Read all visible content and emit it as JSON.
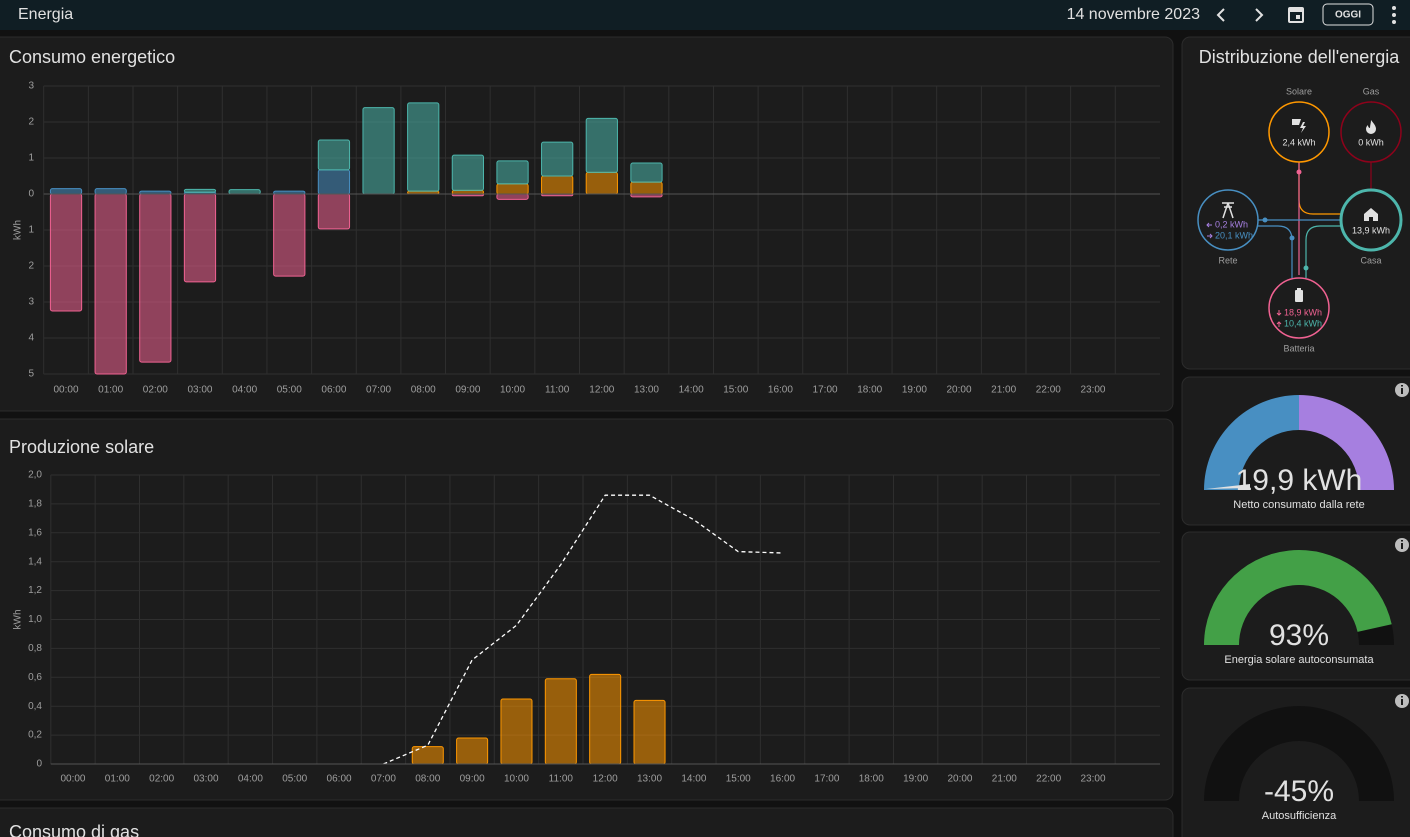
{
  "header": {
    "title": "Energia",
    "date": "14 novembre 2023",
    "today_button": "OGGI"
  },
  "chart_data": [
    {
      "type": "bar",
      "title": "Consumo energetico",
      "y_label": "kWh",
      "categories": [
        "00:00",
        "01:00",
        "02:00",
        "03:00",
        "04:00",
        "05:00",
        "06:00",
        "07:00",
        "08:00",
        "09:00",
        "10:00",
        "11:00",
        "12:00",
        "13:00",
        "14:00",
        "15:00",
        "16:00",
        "17:00",
        "18:00",
        "19:00",
        "20:00",
        "21:00",
        "22:00",
        "23:00"
      ],
      "series": [
        {
          "color": "#488fc2",
          "values": [
            0.15,
            0.15,
            0.08,
            0.05,
            0,
            0.08,
            0.67,
            0,
            0,
            0,
            0,
            0,
            0,
            0,
            null,
            null,
            null,
            null,
            null,
            null,
            null,
            null,
            null,
            null
          ]
        },
        {
          "color": "#ff9800",
          "values": [
            0,
            0,
            0,
            0,
            0,
            0,
            0,
            0,
            0.08,
            0.1,
            0.28,
            0.5,
            0.6,
            0.33,
            null,
            null,
            null,
            null,
            null,
            null,
            null,
            null,
            null,
            null
          ]
        },
        {
          "color": "#4db6ac",
          "values": [
            0,
            0,
            0,
            0.08,
            0.12,
            0,
            0.83,
            2.4,
            2.45,
            0.98,
            0.64,
            0.94,
            1.5,
            0.53,
            null,
            null,
            null,
            null,
            null,
            null,
            null,
            null,
            null,
            null
          ]
        },
        {
          "color": "#f06292",
          "values": [
            -3.25,
            -5,
            -4.67,
            -2.44,
            0,
            -2.28,
            -0.97,
            0,
            0,
            -0.05,
            -0.15,
            -0.05,
            0,
            -0.08,
            null,
            null,
            null,
            null,
            null,
            null,
            null,
            null,
            null,
            null
          ]
        }
      ],
      "ylim": [
        -5,
        3
      ],
      "yticks": [
        3,
        2,
        1,
        0,
        {
          "value": -1,
          "label": "1"
        },
        {
          "value": -2,
          "label": "2"
        },
        {
          "value": -3,
          "label": "3"
        },
        {
          "value": -4,
          "label": "4"
        },
        {
          "value": -5,
          "label": "5"
        }
      ],
      "grid": true
    },
    {
      "type": "bar",
      "title": "Produzione solare",
      "y_label": "kWh",
      "categories": [
        "00:00",
        "01:00",
        "02:00",
        "03:00",
        "04:00",
        "05:00",
        "06:00",
        "07:00",
        "08:00",
        "09:00",
        "10:00",
        "11:00",
        "12:00",
        "13:00",
        "14:00",
        "15:00",
        "16:00",
        "17:00",
        "18:00",
        "19:00",
        "20:00",
        "21:00",
        "22:00",
        "23:00"
      ],
      "series": [
        {
          "color": "#ff9800",
          "values": [
            0,
            0,
            0,
            0,
            0,
            0,
            0,
            0,
            0.12,
            0.18,
            0.45,
            0.59,
            0.62,
            0.44,
            null,
            null,
            null,
            null,
            null,
            null,
            null,
            null,
            null,
            null
          ]
        },
        {
          "type": "line",
          "dashed": true,
          "color": "#ffffff",
          "values": [
            null,
            null,
            null,
            null,
            null,
            null,
            null,
            0,
            0.13,
            0.72,
            0.96,
            1.38,
            1.86,
            1.86,
            1.69,
            1.47,
            1.46,
            null,
            null,
            null,
            null,
            null,
            null,
            null
          ]
        }
      ],
      "ylim": [
        0,
        2
      ],
      "yticks": [
        {
          "value": 2,
          "label": "2,0"
        },
        {
          "value": 1.8,
          "label": "1,8"
        },
        {
          "value": 1.6,
          "label": "1,6"
        },
        {
          "value": 1.4,
          "label": "1,4"
        },
        {
          "value": 1.2,
          "label": "1,2"
        },
        {
          "value": 1,
          "label": "1,0"
        },
        {
          "value": 0.8,
          "label": "0,8"
        },
        {
          "value": 0.6,
          "label": "0,6"
        },
        {
          "value": 0.4,
          "label": "0,4"
        },
        {
          "value": 0.2,
          "label": "0,2"
        },
        0
      ],
      "grid": true
    }
  ],
  "distribution": {
    "title": "Distribuzione dell'energia",
    "solar": {
      "name": "Solare",
      "value": "2,4 kWh"
    },
    "gas": {
      "name": "Gas",
      "value": "0 kWh"
    },
    "grid": {
      "name": "Rete",
      "in": "0,2 kWh",
      "out": "20,1 kWh"
    },
    "home": {
      "name": "Casa",
      "value": "13,9 kWh"
    },
    "battery": {
      "name": "Batteria",
      "in": "18,9 kWh",
      "out": "10,4 kWh"
    }
  },
  "gauges": [
    {
      "label": "19,9 kWh",
      "name": "Netto consumato dalla rete"
    },
    {
      "value": 93,
      "label": "93%",
      "name": "Energia solare autoconsumata",
      "color": "#43a047"
    },
    {
      "value": -45,
      "label": "-45%",
      "name": "Autosufficienza",
      "color": "#43a047"
    }
  ],
  "next_card_title": "Consumo di gas"
}
